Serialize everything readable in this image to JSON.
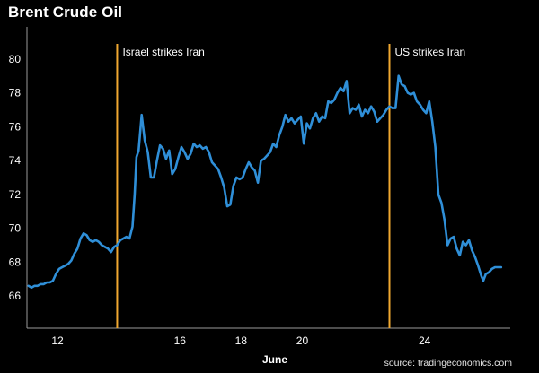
{
  "chart_data": {
    "type": "line",
    "title": "Brent Crude Oil",
    "xlabel": "June",
    "ylabel": "",
    "source": "source: tradingeconomics.com",
    "x_ticks": [
      12,
      16,
      18,
      20,
      24
    ],
    "y_ticks": [
      66,
      68,
      70,
      72,
      74,
      76,
      78,
      80
    ],
    "xlim": [
      11.0,
      26.8
    ],
    "ylim": [
      64.1,
      81.9
    ],
    "grid": false,
    "line_color": "#2f8fd8",
    "event_color": "#f0a830",
    "annotations": [
      {
        "x": 13.95,
        "label": "Israel strikes Iran"
      },
      {
        "x": 22.85,
        "label": "US strikes Iran"
      }
    ],
    "series": [
      {
        "values": [
          [
            11.05,
            66.6
          ],
          [
            11.15,
            66.5
          ],
          [
            11.25,
            66.6
          ],
          [
            11.35,
            66.6
          ],
          [
            11.45,
            66.7
          ],
          [
            11.55,
            66.7
          ],
          [
            11.65,
            66.8
          ],
          [
            11.75,
            66.8
          ],
          [
            11.85,
            66.9
          ],
          [
            11.95,
            67.3
          ],
          [
            12.05,
            67.6
          ],
          [
            12.15,
            67.7
          ],
          [
            12.25,
            67.8
          ],
          [
            12.35,
            67.9
          ],
          [
            12.45,
            68.1
          ],
          [
            12.55,
            68.5
          ],
          [
            12.65,
            68.8
          ],
          [
            12.75,
            69.4
          ],
          [
            12.85,
            69.7
          ],
          [
            12.95,
            69.6
          ],
          [
            13.05,
            69.3
          ],
          [
            13.15,
            69.2
          ],
          [
            13.25,
            69.3
          ],
          [
            13.35,
            69.2
          ],
          [
            13.45,
            69.0
          ],
          [
            13.55,
            68.9
          ],
          [
            13.65,
            68.8
          ],
          [
            13.75,
            68.6
          ],
          [
            13.85,
            68.9
          ],
          [
            13.95,
            69.0
          ],
          [
            14.05,
            69.3
          ],
          [
            14.15,
            69.4
          ],
          [
            14.25,
            69.5
          ],
          [
            14.35,
            69.4
          ],
          [
            14.45,
            70.1
          ],
          [
            14.52,
            72.0
          ],
          [
            14.58,
            74.2
          ],
          [
            14.65,
            74.6
          ],
          [
            14.75,
            76.7
          ],
          [
            14.85,
            75.2
          ],
          [
            14.95,
            74.5
          ],
          [
            15.05,
            73.0
          ],
          [
            15.15,
            73.0
          ],
          [
            15.25,
            74.0
          ],
          [
            15.35,
            74.9
          ],
          [
            15.45,
            74.7
          ],
          [
            15.55,
            74.1
          ],
          [
            15.65,
            74.6
          ],
          [
            15.75,
            73.2
          ],
          [
            15.85,
            73.5
          ],
          [
            15.95,
            74.2
          ],
          [
            16.05,
            74.8
          ],
          [
            16.15,
            74.5
          ],
          [
            16.25,
            74.1
          ],
          [
            16.35,
            74.4
          ],
          [
            16.45,
            75.0
          ],
          [
            16.55,
            74.8
          ],
          [
            16.65,
            74.9
          ],
          [
            16.75,
            74.7
          ],
          [
            16.85,
            74.8
          ],
          [
            16.95,
            74.5
          ],
          [
            17.05,
            73.9
          ],
          [
            17.15,
            73.7
          ],
          [
            17.25,
            73.5
          ],
          [
            17.35,
            73.0
          ],
          [
            17.45,
            72.4
          ],
          [
            17.55,
            71.3
          ],
          [
            17.65,
            71.4
          ],
          [
            17.75,
            72.5
          ],
          [
            17.85,
            73.0
          ],
          [
            17.95,
            72.9
          ],
          [
            18.05,
            73.0
          ],
          [
            18.15,
            73.5
          ],
          [
            18.25,
            73.9
          ],
          [
            18.35,
            73.6
          ],
          [
            18.45,
            73.4
          ],
          [
            18.55,
            72.7
          ],
          [
            18.65,
            74.0
          ],
          [
            18.75,
            74.1
          ],
          [
            18.85,
            74.3
          ],
          [
            18.95,
            74.5
          ],
          [
            19.05,
            75.0
          ],
          [
            19.15,
            74.8
          ],
          [
            19.25,
            75.5
          ],
          [
            19.35,
            76.0
          ],
          [
            19.45,
            76.7
          ],
          [
            19.55,
            76.3
          ],
          [
            19.65,
            76.5
          ],
          [
            19.75,
            76.2
          ],
          [
            19.85,
            76.4
          ],
          [
            19.95,
            76.6
          ],
          [
            20.05,
            75.0
          ],
          [
            20.15,
            76.2
          ],
          [
            20.25,
            75.9
          ],
          [
            20.35,
            76.5
          ],
          [
            20.45,
            76.8
          ],
          [
            20.55,
            76.3
          ],
          [
            20.65,
            76.6
          ],
          [
            20.75,
            76.5
          ],
          [
            20.85,
            77.5
          ],
          [
            20.95,
            77.4
          ],
          [
            21.05,
            77.6
          ],
          [
            21.15,
            78.0
          ],
          [
            21.25,
            78.3
          ],
          [
            21.35,
            78.1
          ],
          [
            21.45,
            78.7
          ],
          [
            21.55,
            76.8
          ],
          [
            21.65,
            77.1
          ],
          [
            21.75,
            77.0
          ],
          [
            21.85,
            77.3
          ],
          [
            21.95,
            76.6
          ],
          [
            22.05,
            77.0
          ],
          [
            22.15,
            76.8
          ],
          [
            22.25,
            77.2
          ],
          [
            22.35,
            76.9
          ],
          [
            22.45,
            76.3
          ],
          [
            22.55,
            76.5
          ],
          [
            22.65,
            76.7
          ],
          [
            22.75,
            77.0
          ],
          [
            22.85,
            77.2
          ],
          [
            22.95,
            77.1
          ],
          [
            23.05,
            77.1
          ],
          [
            23.15,
            79.0
          ],
          [
            23.25,
            78.5
          ],
          [
            23.35,
            78.4
          ],
          [
            23.45,
            78.0
          ],
          [
            23.55,
            77.9
          ],
          [
            23.65,
            78.0
          ],
          [
            23.75,
            77.5
          ],
          [
            23.85,
            77.3
          ],
          [
            23.95,
            77.0
          ],
          [
            24.05,
            76.8
          ],
          [
            24.15,
            77.5
          ],
          [
            24.25,
            76.3
          ],
          [
            24.35,
            74.8
          ],
          [
            24.45,
            72.0
          ],
          [
            24.55,
            71.5
          ],
          [
            24.65,
            70.5
          ],
          [
            24.75,
            69.0
          ],
          [
            24.85,
            69.4
          ],
          [
            24.95,
            69.5
          ],
          [
            25.05,
            68.8
          ],
          [
            25.15,
            68.4
          ],
          [
            25.25,
            69.2
          ],
          [
            25.35,
            69.0
          ],
          [
            25.45,
            69.3
          ],
          [
            25.55,
            68.7
          ],
          [
            25.65,
            68.3
          ],
          [
            25.75,
            67.8
          ],
          [
            25.85,
            67.2
          ],
          [
            25.92,
            66.9
          ],
          [
            26.0,
            67.3
          ],
          [
            26.1,
            67.4
          ],
          [
            26.2,
            67.6
          ],
          [
            26.3,
            67.7
          ],
          [
            26.4,
            67.7
          ],
          [
            26.5,
            67.7
          ]
        ]
      }
    ]
  }
}
